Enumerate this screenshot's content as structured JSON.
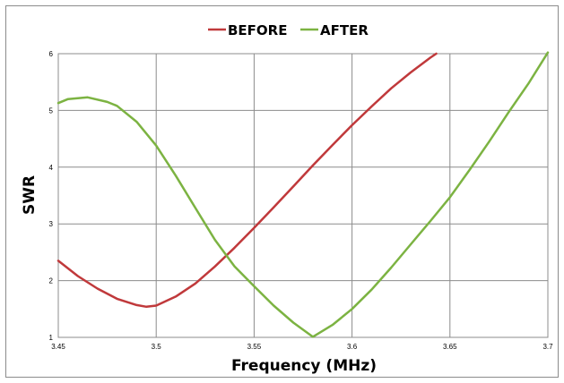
{
  "chart_data": {
    "type": "line",
    "title": "",
    "xlabel": "Frequency (MHz)",
    "ylabel": "SWR",
    "xlim": [
      3.45,
      3.7
    ],
    "ylim": [
      1,
      6
    ],
    "x_ticks": [
      "3.45",
      "3.5",
      "3.55",
      "3.6",
      "3.65",
      "3.7"
    ],
    "y_ticks": [
      "1",
      "2",
      "3",
      "4",
      "5",
      "6"
    ],
    "grid": true,
    "legend_position": "top-center",
    "series": [
      {
        "name": "BEFORE",
        "color": "#c0393b",
        "x": [
          3.45,
          3.46,
          3.47,
          3.48,
          3.49,
          3.495,
          3.5,
          3.51,
          3.52,
          3.53,
          3.54,
          3.55,
          3.56,
          3.57,
          3.58,
          3.59,
          3.6,
          3.61,
          3.62,
          3.63,
          3.64,
          3.643
        ],
        "y": [
          2.35,
          2.08,
          1.86,
          1.68,
          1.57,
          1.54,
          1.56,
          1.72,
          1.95,
          2.25,
          2.58,
          2.93,
          3.29,
          3.66,
          4.03,
          4.39,
          4.74,
          5.07,
          5.39,
          5.67,
          5.93,
          6.0
        ]
      },
      {
        "name": "AFTER",
        "color": "#7cb342",
        "x": [
          3.45,
          3.455,
          3.465,
          3.475,
          3.48,
          3.49,
          3.5,
          3.51,
          3.52,
          3.53,
          3.54,
          3.55,
          3.56,
          3.57,
          3.58,
          3.59,
          3.6,
          3.61,
          3.62,
          3.63,
          3.64,
          3.65,
          3.66,
          3.67,
          3.68,
          3.69,
          3.7
        ],
        "y": [
          5.13,
          5.2,
          5.23,
          5.15,
          5.08,
          4.8,
          4.38,
          3.85,
          3.28,
          2.72,
          2.25,
          1.9,
          1.56,
          1.26,
          1.01,
          1.22,
          1.5,
          1.84,
          2.23,
          2.64,
          3.05,
          3.47,
          3.95,
          4.45,
          4.97,
          5.47,
          6.02
        ]
      }
    ]
  }
}
